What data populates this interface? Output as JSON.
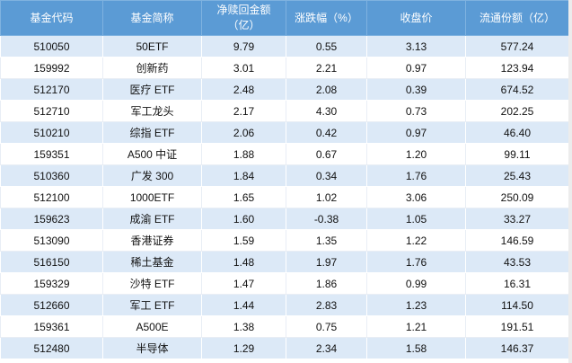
{
  "colors": {
    "header_bg": "#5b9bd5",
    "header_text": "#ffffff",
    "row_alt_bg": "#dce9f7",
    "row_bg": "#ffffff",
    "cell_text": "#111111"
  },
  "chart_data": {
    "type": "table",
    "title": "",
    "headers": [
      "基金代码",
      "基金简称",
      "净赎回金额\n（亿）",
      "涨跌幅（%）",
      "收盘价",
      "流通份额（亿）"
    ],
    "rows": [
      [
        "510050",
        "50ETF",
        "9.79",
        "0.55",
        "3.13",
        "577.24"
      ],
      [
        "159992",
        "创新药",
        "3.01",
        "2.21",
        "0.97",
        "123.94"
      ],
      [
        "512170",
        "医疗 ETF",
        "2.48",
        "2.08",
        "0.39",
        "674.52"
      ],
      [
        "512710",
        "军工龙头",
        "2.17",
        "4.30",
        "0.73",
        "202.25"
      ],
      [
        "510210",
        "综指 ETF",
        "2.06",
        "0.42",
        "0.97",
        "46.40"
      ],
      [
        "159351",
        "A500 中证",
        "1.88",
        "0.67",
        "1.20",
        "99.11"
      ],
      [
        "510360",
        "广发 300",
        "1.84",
        "0.34",
        "1.76",
        "25.43"
      ],
      [
        "512100",
        "1000ETF",
        "1.65",
        "1.02",
        "3.06",
        "250.09"
      ],
      [
        "159623",
        "成渝 ETF",
        "1.60",
        "-0.38",
        "1.05",
        "33.27"
      ],
      [
        "513090",
        "香港证券",
        "1.59",
        "1.35",
        "1.22",
        "146.59"
      ],
      [
        "516150",
        "稀土基金",
        "1.48",
        "1.97",
        "1.76",
        "43.53"
      ],
      [
        "159329",
        "沙特 ETF",
        "1.47",
        "1.86",
        "0.99",
        "16.31"
      ],
      [
        "512660",
        "军工 ETF",
        "1.44",
        "2.83",
        "1.23",
        "114.50"
      ],
      [
        "159361",
        "A500E",
        "1.38",
        "0.75",
        "1.21",
        "191.51"
      ],
      [
        "512480",
        "半导体",
        "1.29",
        "2.34",
        "1.58",
        "146.37"
      ]
    ]
  }
}
